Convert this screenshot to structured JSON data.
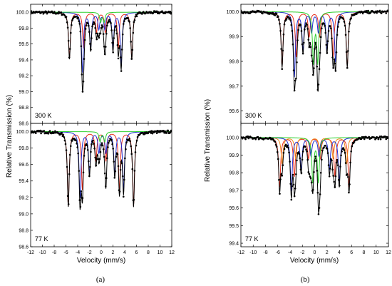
{
  "figure": {
    "panel_labels": [
      "(a)",
      "(b)"
    ]
  },
  "colors": {
    "envelope": "#000000",
    "data_points": "#000000",
    "sextet_1": "#e8301e",
    "sextet_2": "#1f2ccf",
    "doublet": "#2ecf2e",
    "sextet_3": "#f08a1c"
  },
  "chart_data": [
    {
      "type": "scatter",
      "title": "(a) 300 K",
      "temperature_label": "300 K",
      "xlabel": "",
      "ylabel": "Relative Transmission (%)",
      "xlim": [
        -12,
        12
      ],
      "ylim": [
        98.6,
        100.1
      ],
      "yticks": [
        "98.6",
        "98.8",
        "99.0",
        "99.2",
        "99.4",
        "99.6",
        "99.8",
        "100.0"
      ],
      "components": [
        {
          "color": "sextet_1",
          "lines": [
            {
              "v": -5.4,
              "d": 0.58
            },
            {
              "v": -3.0,
              "d": 0.45
            },
            {
              "v": -0.8,
              "d": 0.25
            },
            {
              "v": 0.7,
              "d": 0.25
            },
            {
              "v": 2.9,
              "d": 0.45
            },
            {
              "v": 5.2,
              "d": 0.58
            }
          ]
        },
        {
          "color": "sextet_2",
          "lines": [
            {
              "v": -3.2,
              "d": 0.75
            },
            {
              "v": -1.8,
              "d": 0.45
            },
            {
              "v": -0.4,
              "d": 0.2
            },
            {
              "v": 0.6,
              "d": 0.2
            },
            {
              "v": 2.0,
              "d": 0.45
            },
            {
              "v": 3.4,
              "d": 0.65
            }
          ]
        },
        {
          "color": "doublet",
          "lines": [
            {
              "v": -0.1,
              "d": 0.12
            },
            {
              "v": 0.5,
              "d": 0.12
            }
          ]
        }
      ]
    },
    {
      "type": "scatter",
      "title": "(a) 77 K",
      "temperature_label": "77 K",
      "xlabel": "Velocity (mm/s)",
      "ylabel": "",
      "xlim": [
        -12,
        12
      ],
      "ylim": [
        98.6,
        100.1
      ],
      "xticks": [
        "-12",
        "-10",
        "-8",
        "-6",
        "-4",
        "-2",
        "0",
        "2",
        "4",
        "6",
        "8",
        "10",
        "12"
      ],
      "yticks": [
        "98.6",
        "98.8",
        "99.0",
        "99.2",
        "99.4",
        "99.6",
        "99.8",
        "100.0"
      ],
      "components": [
        {
          "color": "sextet_1",
          "lines": [
            {
              "v": -5.6,
              "d": 0.9
            },
            {
              "v": -3.2,
              "d": 0.7
            },
            {
              "v": -0.9,
              "d": 0.35
            },
            {
              "v": 0.8,
              "d": 0.35
            },
            {
              "v": 3.1,
              "d": 0.7
            },
            {
              "v": 5.5,
              "d": 0.9
            }
          ]
        },
        {
          "color": "sextet_2",
          "lines": [
            {
              "v": -3.6,
              "d": 0.8
            },
            {
              "v": -2.0,
              "d": 0.5
            },
            {
              "v": -0.4,
              "d": 0.25
            },
            {
              "v": 0.8,
              "d": 0.25
            },
            {
              "v": 2.3,
              "d": 0.5
            },
            {
              "v": 3.8,
              "d": 0.7
            }
          ]
        },
        {
          "color": "doublet",
          "lines": [
            {
              "v": -0.2,
              "d": 0.12
            },
            {
              "v": 0.6,
              "d": 0.12
            }
          ]
        }
      ]
    },
    {
      "type": "scatter",
      "title": "(b) 300 K",
      "temperature_label": "300 K",
      "xlabel": "",
      "ylabel": "Relative Transmission (%)",
      "xlim": [
        -12,
        12
      ],
      "ylim": [
        99.55,
        100.03
      ],
      "yticks": [
        "99.6",
        "99.7",
        "99.8",
        "99.9",
        "100.0"
      ],
      "components": [
        {
          "color": "sextet_1",
          "lines": [
            {
              "v": -5.3,
              "d": 0.22
            },
            {
              "v": -3.0,
              "d": 0.18
            },
            {
              "v": -0.9,
              "d": 0.1
            },
            {
              "v": 0.8,
              "d": 0.1
            },
            {
              "v": 3.0,
              "d": 0.18
            },
            {
              "v": 5.3,
              "d": 0.22
            }
          ]
        },
        {
          "color": "sextet_2",
          "lines": [
            {
              "v": -3.3,
              "d": 0.26
            },
            {
              "v": -1.9,
              "d": 0.15
            },
            {
              "v": -0.5,
              "d": 0.08
            },
            {
              "v": 0.6,
              "d": 0.08
            },
            {
              "v": 2.0,
              "d": 0.15
            },
            {
              "v": 3.4,
              "d": 0.2
            }
          ]
        },
        {
          "color": "doublet",
          "lines": [
            {
              "v": -0.2,
              "d": 0.2
            },
            {
              "v": 0.5,
              "d": 0.2
            }
          ]
        }
      ]
    },
    {
      "type": "scatter",
      "title": "(b) 77 K",
      "temperature_label": "77 K",
      "xlabel": "Velocity (mm/s)",
      "ylabel": "",
      "xlim": [
        -12,
        12
      ],
      "ylim": [
        99.38,
        100.08
      ],
      "xticks": [
        "-12",
        "-10",
        "-8",
        "-6",
        "-4",
        "-2",
        "0",
        "2",
        "4",
        "6",
        "8",
        "10",
        "12"
      ],
      "yticks": [
        "99.4",
        "99.5",
        "99.6",
        "99.7",
        "99.8",
        "99.9",
        "100.0"
      ],
      "components": [
        {
          "color": "sextet_1",
          "lines": [
            {
              "v": -5.7,
              "d": 0.28
            },
            {
              "v": -3.3,
              "d": 0.22
            },
            {
              "v": -1.0,
              "d": 0.12
            },
            {
              "v": 0.9,
              "d": 0.12
            },
            {
              "v": 3.3,
              "d": 0.22
            },
            {
              "v": 5.6,
              "d": 0.28
            }
          ]
        },
        {
          "color": "sextet_3",
          "lines": [
            {
              "v": -5.3,
              "d": 0.15
            },
            {
              "v": -3.1,
              "d": 0.12
            },
            {
              "v": -0.8,
              "d": 0.06
            },
            {
              "v": 0.8,
              "d": 0.06
            },
            {
              "v": 3.0,
              "d": 0.12
            },
            {
              "v": 5.2,
              "d": 0.15
            }
          ]
        },
        {
          "color": "sextet_2",
          "lines": [
            {
              "v": -3.8,
              "d": 0.3
            },
            {
              "v": -2.2,
              "d": 0.18
            },
            {
              "v": -0.6,
              "d": 0.1
            },
            {
              "v": 0.7,
              "d": 0.1
            },
            {
              "v": 2.4,
              "d": 0.18
            },
            {
              "v": 4.0,
              "d": 0.25
            }
          ]
        },
        {
          "color": "doublet",
          "lines": [
            {
              "v": -0.3,
              "d": 0.25
            },
            {
              "v": 0.6,
              "d": 0.25
            }
          ]
        }
      ]
    }
  ]
}
